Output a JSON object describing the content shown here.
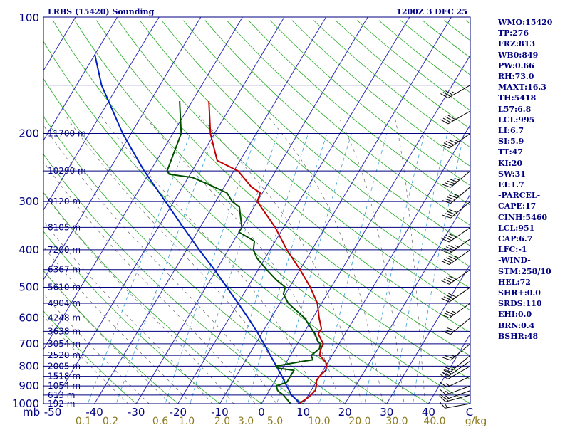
{
  "header": {
    "station": "LRBS (15420) Sounding",
    "time": "1200Z  3 DEC 25"
  },
  "colors": {
    "frame": "#000080",
    "isotherm": "#2b2bb8",
    "dry_adiabat": "#22aa22",
    "moist_adiabat": "#666666",
    "mixing_ratio": "#3aa0d8",
    "temperature": "#c00000",
    "dewpoint": "#005000",
    "parcel": "#0020c0",
    "mixing_label": "#8b7a1e"
  },
  "chart_data": {
    "type": "skew-t",
    "pressure_axis": {
      "unit": "mb",
      "range": [
        100,
        1000
      ],
      "ticks": [
        100,
        200,
        300,
        400,
        500,
        600,
        700,
        800,
        900,
        1000
      ]
    },
    "temperature_axis": {
      "unit": "C",
      "ticks": [
        "-50",
        "-40",
        "-30",
        "-20",
        "-10",
        "0",
        "10",
        "20",
        "30",
        "40"
      ],
      "end_label": "C"
    },
    "mb_label": "mb",
    "height_labels": [
      {
        "p": 200,
        "text": "11700 m"
      },
      {
        "p": 250,
        "text": "10290 m"
      },
      {
        "p": 300,
        "text": "9120 m"
      },
      {
        "p": 350,
        "text": "8105 m"
      },
      {
        "p": 400,
        "text": "7200 m"
      },
      {
        "p": 450,
        "text": "6367 m"
      },
      {
        "p": 500,
        "text": "5610 m"
      },
      {
        "p": 550,
        "text": "4904 m"
      },
      {
        "p": 600,
        "text": "4248 m"
      },
      {
        "p": 650,
        "text": "3638 m"
      },
      {
        "p": 700,
        "text": "3054 m"
      },
      {
        "p": 750,
        "text": "2520 m"
      },
      {
        "p": 800,
        "text": "2005 m"
      },
      {
        "p": 850,
        "text": "1518 m"
      },
      {
        "p": 900,
        "text": "1054 m"
      },
      {
        "p": 950,
        "text": "613 m"
      },
      {
        "p": 1000,
        "text": "192 m"
      }
    ],
    "extra_isobars": [
      150
    ],
    "mixing_ratio_labels": [
      "0.1",
      "0.2",
      "0.6",
      "1.0",
      "2.0",
      "3.0",
      "5.0",
      "10.0",
      "20.0",
      "30.0",
      "40.0",
      "g/kg"
    ],
    "mixing_ratio_values": [
      0.1,
      0.2,
      0.6,
      1.0,
      2.0,
      3.0,
      5.0,
      10.0,
      20.0,
      30.0,
      40.0
    ],
    "temperature_profile": [
      [
        1015,
        9.2
      ],
      [
        1000,
        9.0
      ],
      [
        960,
        10.4
      ],
      [
        925,
        11.0
      ],
      [
        900,
        10.6
      ],
      [
        870,
        9.8
      ],
      [
        850,
        10.0
      ],
      [
        820,
        10.6
      ],
      [
        800,
        10.2
      ],
      [
        780,
        9.4
      ],
      [
        750,
        7.0
      ],
      [
        725,
        6.4
      ],
      [
        700,
        6.2
      ],
      [
        660,
        3.6
      ],
      [
        640,
        3.6
      ],
      [
        600,
        1.5
      ],
      [
        550,
        -1.0
      ],
      [
        500,
        -5.0
      ],
      [
        450,
        -10.0
      ],
      [
        400,
        -16.0
      ],
      [
        350,
        -22.0
      ],
      [
        300,
        -30.0
      ],
      [
        285,
        -30.5
      ],
      [
        275,
        -33.5
      ],
      [
        250,
        -39.0
      ],
      [
        235,
        -45.5
      ],
      [
        200,
        -51.0
      ],
      [
        165,
        -56.0
      ]
    ],
    "dewpoint_profile": [
      [
        1015,
        7.8
      ],
      [
        1000,
        7.0
      ],
      [
        950,
        4.0
      ],
      [
        925,
        2.0
      ],
      [
        900,
        1.0
      ],
      [
        880,
        3.0
      ],
      [
        850,
        3.0
      ],
      [
        820,
        3.0
      ],
      [
        810,
        -1.0
      ],
      [
        800,
        -2.0
      ],
      [
        780,
        3.0
      ],
      [
        770,
        6.0
      ],
      [
        750,
        5.0
      ],
      [
        720,
        6.0
      ],
      [
        700,
        5.5
      ],
      [
        690,
        4.6
      ],
      [
        660,
        2.8
      ],
      [
        650,
        2.0
      ],
      [
        600,
        -2.0
      ],
      [
        550,
        -8.0
      ],
      [
        520,
        -10.5
      ],
      [
        500,
        -11.0
      ],
      [
        480,
        -14.0
      ],
      [
        450,
        -18.0
      ],
      [
        420,
        -22.0
      ],
      [
        400,
        -24.0
      ],
      [
        380,
        -25.0
      ],
      [
        360,
        -30.0
      ],
      [
        350,
        -30.0
      ],
      [
        310,
        -33.5
      ],
      [
        300,
        -36.0
      ],
      [
        285,
        -38.5
      ],
      [
        270,
        -44.5
      ],
      [
        260,
        -49.0
      ],
      [
        255,
        -55.0
      ],
      [
        250,
        -56.0
      ],
      [
        200,
        -58.0
      ],
      [
        165,
        -63.0
      ]
    ],
    "parcel_profile": [
      [
        1015,
        9.2
      ],
      [
        990,
        8.7
      ],
      [
        951,
        6.0
      ],
      [
        900,
        3.5
      ],
      [
        850,
        1.0
      ],
      [
        800,
        -1.8
      ],
      [
        750,
        -4.8
      ],
      [
        700,
        -8.0
      ],
      [
        650,
        -11.5
      ],
      [
        600,
        -15.5
      ],
      [
        550,
        -20.0
      ],
      [
        500,
        -25.0
      ],
      [
        450,
        -30.5
      ],
      [
        400,
        -37.0
      ],
      [
        350,
        -44.0
      ],
      [
        300,
        -52.0
      ],
      [
        250,
        -61.5
      ],
      [
        200,
        -72.0
      ],
      [
        150,
        -84.0
      ],
      [
        125,
        -90.0
      ]
    ],
    "wind_barbs": [
      {
        "p": 1000,
        "dir": 260,
        "spd": 15
      },
      {
        "p": 950,
        "dir": 255,
        "spd": 15
      },
      {
        "p": 925,
        "dir": 250,
        "spd": 15
      },
      {
        "p": 900,
        "dir": 250,
        "spd": 15
      },
      {
        "p": 850,
        "dir": 245,
        "spd": 15
      },
      {
        "p": 800,
        "dir": 240,
        "spd": 20
      },
      {
        "p": 775,
        "dir": 235,
        "spd": 20
      },
      {
        "p": 750,
        "dir": 230,
        "spd": 25
      },
      {
        "p": 700,
        "dir": 230,
        "spd": 25
      },
      {
        "p": 600,
        "dir": 230,
        "spd": 30
      },
      {
        "p": 550,
        "dir": 235,
        "spd": 35
      },
      {
        "p": 500,
        "dir": 235,
        "spd": 40
      },
      {
        "p": 450,
        "dir": 235,
        "spd": 40
      },
      {
        "p": 400,
        "dir": 235,
        "spd": 45
      },
      {
        "p": 375,
        "dir": 235,
        "spd": 45
      },
      {
        "p": 350,
        "dir": 235,
        "spd": 40
      },
      {
        "p": 300,
        "dir": 230,
        "spd": 40
      },
      {
        "p": 275,
        "dir": 230,
        "spd": 45
      },
      {
        "p": 250,
        "dir": 230,
        "spd": 45
      },
      {
        "p": 200,
        "dir": 235,
        "spd": 45
      },
      {
        "p": 175,
        "dir": 240,
        "spd": 40
      },
      {
        "p": 150,
        "dir": 240,
        "spd": 35
      }
    ]
  },
  "indices": [
    "WMO:15420",
    "TP:276",
    "FRZ:813",
    "WB0:849",
    "PW:0.66",
    "RH:73.0",
    "MAXT:16.3",
    "TH:5418",
    "L57:6.8",
    "LCL:995",
    "LI:6.7",
    "SI:5.9",
    "TT:47",
    "KI:20",
    "SW:31",
    "EI:1.7",
    "-PARCEL-",
    "CAPE:17",
    "CINH:5460",
    "LCL:951",
    "CAP:6.7",
    "LFC:-1",
    "-WIND-",
    "STM:258/10",
    "HEL:72",
    "SHR+:0.0",
    "SRDS:110",
    "EHI:0.0",
    "BRN:0.4",
    "BSHR:48"
  ]
}
